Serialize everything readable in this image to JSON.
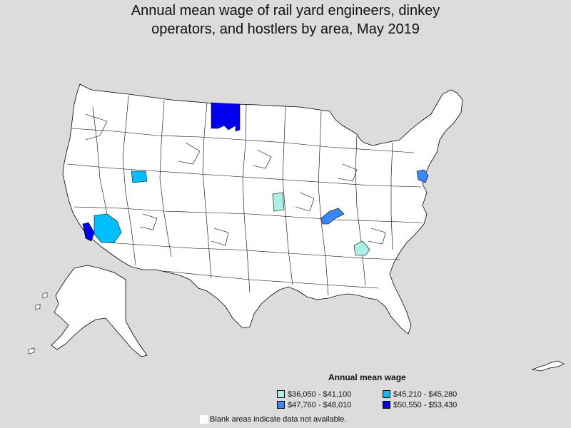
{
  "title_line1": "Annual mean wage of rail yard engineers, dinkey",
  "title_line2": "operators, and hostlers by area, May 2019",
  "legend": {
    "title": "Annual mean wage",
    "items": [
      {
        "label": "$36,050 - $41,100",
        "color": "#aaf0e6"
      },
      {
        "label": "$45,210 - $45,280",
        "color": "#00bfff"
      },
      {
        "label": "$47,760 - $48,010",
        "color": "#3a86ff"
      },
      {
        "label": "$50,550 - $53,430",
        "color": "#0000ee"
      }
    ]
  },
  "note": "Blank areas indicate data not available.",
  "map": {
    "blank_color": "#ffffff",
    "regions": [
      {
        "name": "north-dakota-east-area",
        "bin": 3
      },
      {
        "name": "southern-california-area",
        "bin": 3
      },
      {
        "name": "arizona-area",
        "bin": 1
      },
      {
        "name": "utah-area",
        "bin": 1
      },
      {
        "name": "kentucky-tennessee-area",
        "bin": 2
      },
      {
        "name": "new-jersey-pennsylvania-area",
        "bin": 2
      },
      {
        "name": "kansas-missouri-area",
        "bin": 0
      },
      {
        "name": "georgia-area",
        "bin": 0
      }
    ]
  }
}
